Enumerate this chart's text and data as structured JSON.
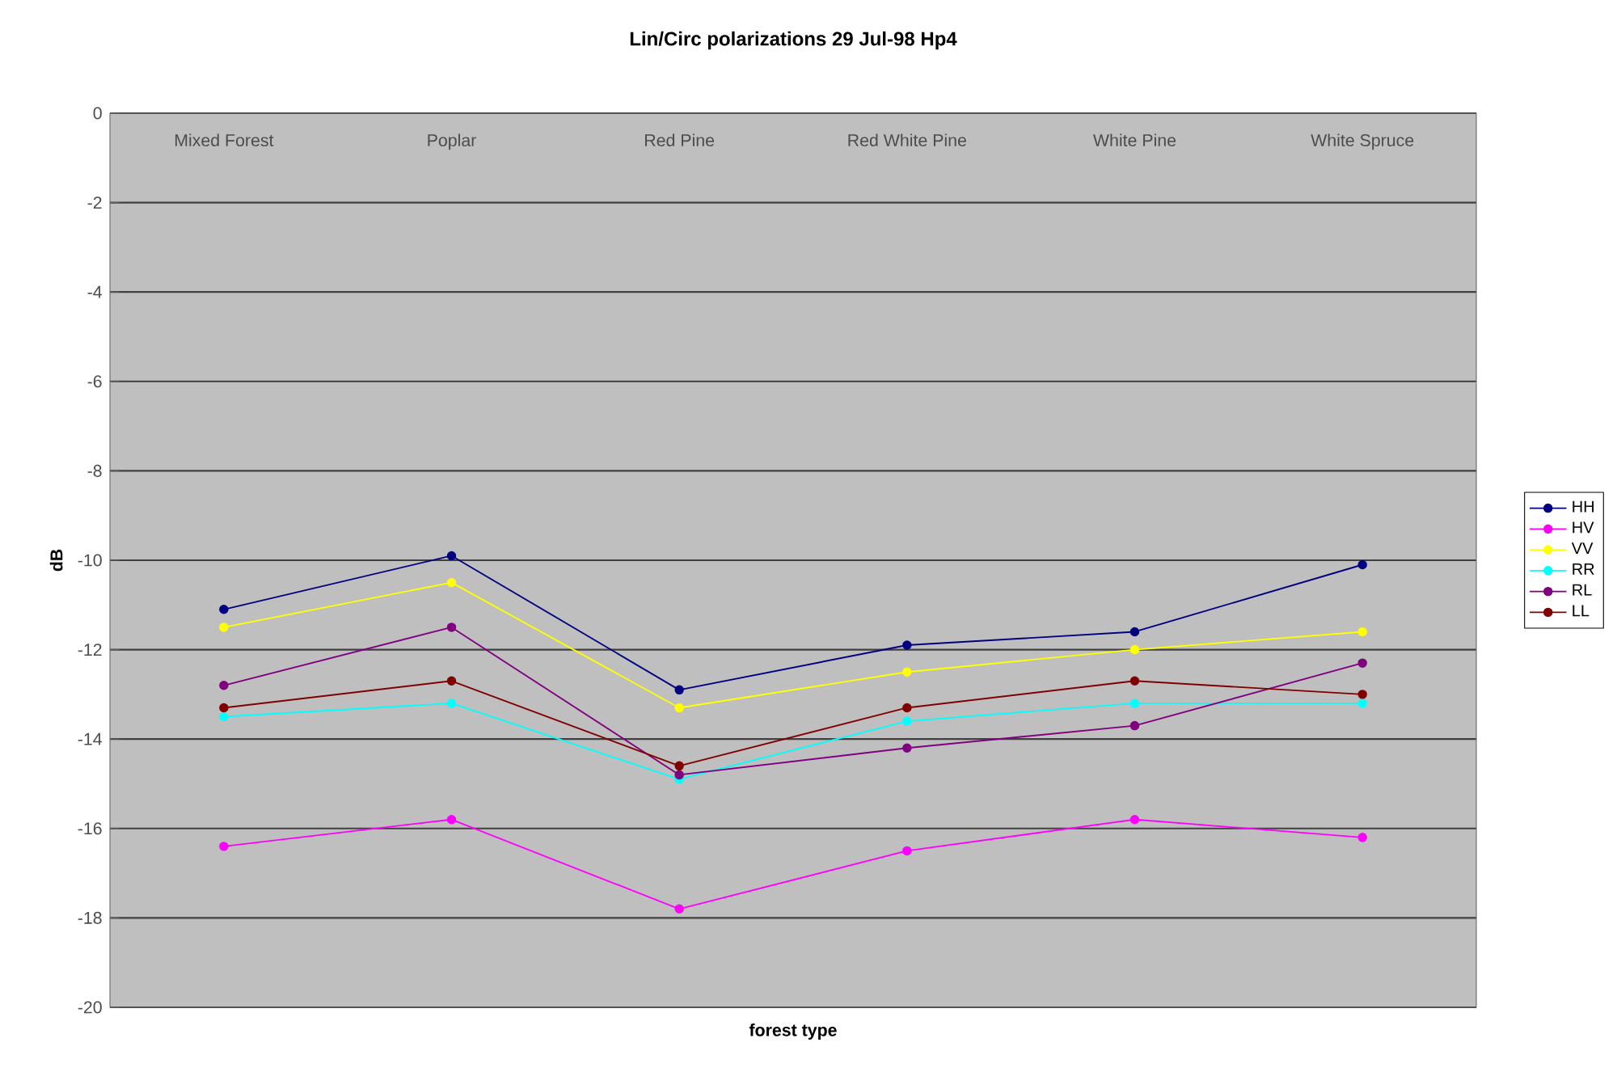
{
  "chart_data": {
    "type": "line",
    "title": "Lin/Circ polarizations 29 Jul-98 Hp4",
    "xlabel": "forest type",
    "ylabel": "dB",
    "categories": [
      "Mixed Forest",
      "Poplar",
      "Red Pine",
      "Red White Pine",
      "White Pine",
      "White Spruce"
    ],
    "series": [
      {
        "name": "HH",
        "color": "#000080",
        "values": [
          -11.1,
          -9.9,
          -12.9,
          -11.9,
          -11.6,
          -10.1
        ]
      },
      {
        "name": "HV",
        "color": "#ff00ff",
        "values": [
          -16.4,
          -15.8,
          -17.8,
          -16.5,
          -15.8,
          -16.2
        ]
      },
      {
        "name": "VV",
        "color": "#ffff00",
        "values": [
          -11.5,
          -10.5,
          -13.3,
          -12.5,
          -12.0,
          -11.6
        ]
      },
      {
        "name": "RR",
        "color": "#00ffff",
        "values": [
          -13.5,
          -13.2,
          -14.9,
          -13.6,
          -13.2,
          -13.2
        ]
      },
      {
        "name": "RL",
        "color": "#800080",
        "values": [
          -12.8,
          -11.5,
          -14.8,
          -14.2,
          -13.7,
          -12.3
        ]
      },
      {
        "name": "LL",
        "color": "#800000",
        "values": [
          -13.3,
          -12.7,
          -14.6,
          -13.3,
          -12.7,
          -13.0
        ]
      }
    ],
    "ylim": [
      -20,
      0
    ],
    "yticks": [
      -20,
      -18,
      -16,
      -14,
      -12,
      -10,
      -8,
      -6,
      -4,
      -2,
      0
    ],
    "grid": "y",
    "legend": "right",
    "marker": "circle",
    "line_style": "solid"
  }
}
